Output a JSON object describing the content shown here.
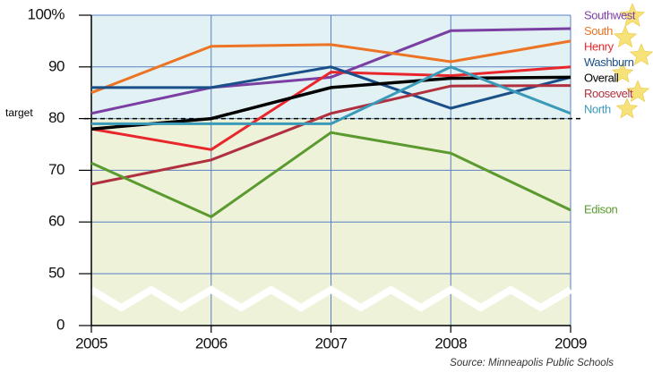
{
  "chart_data": {
    "type": "line",
    "x": [
      "2005",
      "2006",
      "2007",
      "2008",
      "2009"
    ],
    "series": [
      {
        "name": "Southwest",
        "color": "#7b3fa3",
        "values": [
          81,
          86,
          88,
          97,
          97.4
        ]
      },
      {
        "name": "South",
        "color": "#ec7424",
        "values": [
          85,
          94,
          94.3,
          91,
          95
        ]
      },
      {
        "name": "Henry",
        "color": "#e8262b",
        "values": [
          78,
          74,
          89,
          88.3,
          90
        ]
      },
      {
        "name": "Washburn",
        "color": "#1a4f8a",
        "values": [
          86,
          86,
          90,
          82,
          88
        ]
      },
      {
        "name": "Overall",
        "color": "#000000",
        "values": [
          78,
          80,
          86,
          87.8,
          88
        ]
      },
      {
        "name": "Roosevelt",
        "color": "#b0303f",
        "values": [
          67.3,
          72,
          81,
          86.3,
          86.4
        ]
      },
      {
        "name": "North",
        "color": "#3a9ab8",
        "values": [
          79,
          79,
          79,
          90,
          81
        ]
      },
      {
        "name": "Edison",
        "color": "#5a9a2e",
        "values": [
          71.4,
          61,
          77.3,
          73.3,
          62.3
        ]
      }
    ],
    "ylim": [
      0,
      100
    ],
    "ybreak": [
      0,
      50
    ],
    "yticks": [
      0,
      50,
      60,
      70,
      80,
      90,
      {
        "value": 100,
        "label": "100%"
      }
    ],
    "target": {
      "value": 80,
      "label": "target"
    },
    "grid": true,
    "source": "Source: Minneapolis Public Schools"
  }
}
